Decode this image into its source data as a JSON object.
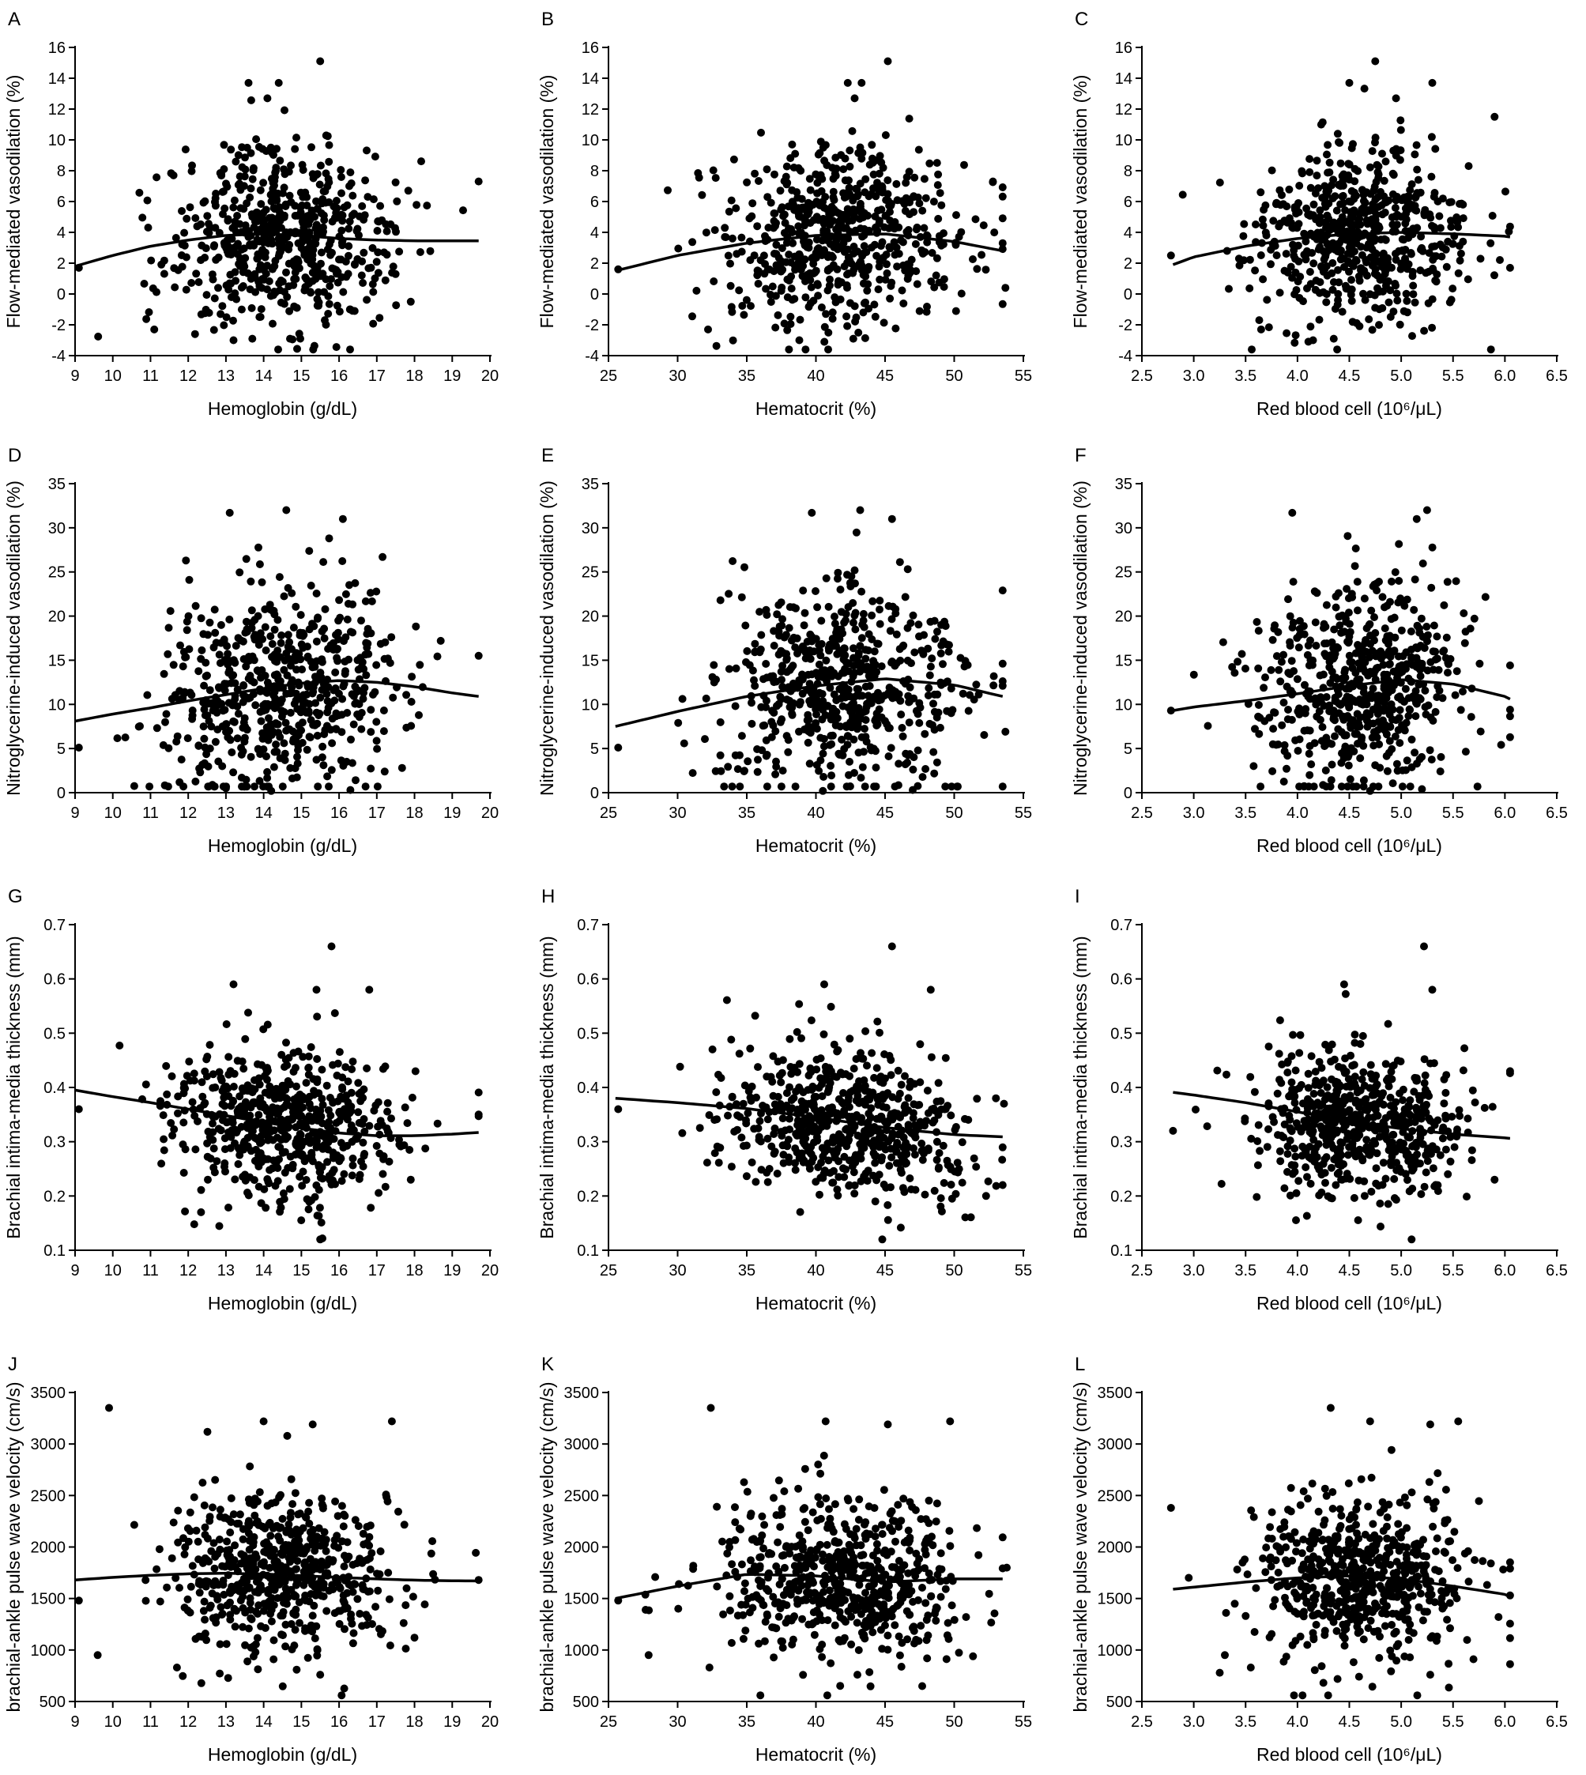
{
  "chart_data": [
    {
      "panel": "A",
      "type": "scatter",
      "xlabel": "Hemoglobin (g/dL)",
      "ylabel": "Flow-mediated vasodilation (%)",
      "xlim": [
        9,
        20
      ],
      "ylim": [
        -4,
        16
      ],
      "xticks": [
        "9",
        "10",
        "11",
        "12",
        "13",
        "14",
        "15",
        "16",
        "17",
        "18",
        "19",
        "20"
      ],
      "yticks": [
        "-4",
        "-2",
        "0",
        "2",
        "4",
        "6",
        "8",
        "10",
        "12",
        "14",
        "16"
      ],
      "fit": {
        "x": [
          9,
          10,
          11,
          12,
          13,
          14,
          15,
          16,
          17,
          18,
          19,
          19.7
        ],
        "y": [
          1.8,
          2.5,
          3.1,
          3.5,
          3.8,
          3.9,
          3.8,
          3.6,
          3.5,
          3.45,
          3.45,
          3.45
        ]
      },
      "points": {
        "n": 600,
        "x_mean": 14.5,
        "x_sd": 1.5,
        "y_mean": 3.7,
        "y_sd": 2.9,
        "extremes": [
          [
            15.5,
            15.1
          ],
          [
            13.6,
            13.7
          ],
          [
            14.4,
            13.7
          ],
          [
            14.1,
            12.7
          ],
          [
            13.2,
            -3.0
          ],
          [
            14.7,
            -2.9
          ],
          [
            11.1,
            -2.3
          ],
          [
            19.7,
            7.3
          ],
          [
            17.9,
            -0.5
          ],
          [
            9.1,
            1.7
          ]
        ]
      }
    },
    {
      "panel": "B",
      "type": "scatter",
      "xlabel": "Hematocrit (%)",
      "ylabel": "Flow-mediated vasodilation (%)",
      "xlim": [
        25,
        55
      ],
      "ylim": [
        -4,
        16
      ],
      "xticks": [
        "25",
        "30",
        "35",
        "40",
        "45",
        "50",
        "55"
      ],
      "yticks": [
        "-4",
        "-2",
        "0",
        "2",
        "4",
        "6",
        "8",
        "10",
        "12",
        "14",
        "16"
      ],
      "fit": {
        "x": [
          25.5,
          30,
          35,
          40,
          45,
          50,
          53.5
        ],
        "y": [
          1.5,
          2.5,
          3.3,
          3.8,
          3.9,
          3.4,
          2.8
        ]
      },
      "points": {
        "n": 600,
        "x_mean": 42,
        "x_sd": 4.5,
        "y_mean": 3.7,
        "y_sd": 2.9,
        "extremes": [
          [
            45.2,
            15.1
          ],
          [
            42.3,
            13.7
          ],
          [
            43.3,
            13.7
          ],
          [
            42.8,
            12.7
          ],
          [
            38.8,
            -3.0
          ],
          [
            42.7,
            -2.9
          ],
          [
            32.2,
            -2.3
          ],
          [
            52.8,
            7.3
          ],
          [
            53.7,
            0.4
          ],
          [
            25.7,
            1.6
          ]
        ]
      }
    },
    {
      "panel": "C",
      "type": "scatter",
      "xlabel": "Red blood cell (10⁶/μL)",
      "ylabel": "Flow-mediated vasodilation (%)",
      "xlim": [
        2.5,
        6.5
      ],
      "ylim": [
        -4,
        16
      ],
      "xticks": [
        "2.5",
        "3.0",
        "3.5",
        "4.0",
        "4.5",
        "5.0",
        "5.5",
        "6.0",
        "6.5"
      ],
      "yticks": [
        "-4",
        "-2",
        "0",
        "2",
        "4",
        "6",
        "8",
        "10",
        "12",
        "14",
        "16"
      ],
      "fit": {
        "x": [
          2.8,
          3.0,
          3.5,
          4.0,
          4.5,
          5.0,
          5.5,
          6.0,
          6.05
        ],
        "y": [
          1.9,
          2.4,
          3.1,
          3.6,
          3.9,
          4.0,
          3.9,
          3.75,
          3.7
        ]
      },
      "points": {
        "n": 600,
        "x_mean": 4.6,
        "x_sd": 0.5,
        "y_mean": 3.7,
        "y_sd": 2.9,
        "extremes": [
          [
            4.75,
            15.1
          ],
          [
            4.5,
            13.7
          ],
          [
            5.3,
            13.7
          ],
          [
            4.95,
            12.7
          ],
          [
            4.15,
            -3.0
          ],
          [
            4.35,
            -2.9
          ],
          [
            3.65,
            -2.3
          ],
          [
            5.9,
            11.5
          ],
          [
            6.05,
            1.7
          ],
          [
            2.78,
            2.5
          ]
        ]
      }
    },
    {
      "panel": "D",
      "type": "scatter",
      "xlabel": "Hemoglobin (g/dL)",
      "ylabel": "Nitroglycerine-induced vasodilation (%)",
      "xlim": [
        9,
        20
      ],
      "ylim": [
        0,
        35
      ],
      "xticks": [
        "9",
        "10",
        "11",
        "12",
        "13",
        "14",
        "15",
        "16",
        "17",
        "18",
        "19",
        "20"
      ],
      "yticks": [
        "0",
        "5",
        "10",
        "15",
        "20",
        "25",
        "30",
        "35"
      ],
      "fit": {
        "x": [
          9,
          10,
          11,
          12,
          13,
          14,
          15,
          16,
          17,
          18,
          19,
          19.7
        ],
        "y": [
          8.1,
          8.9,
          9.6,
          10.4,
          11.1,
          11.8,
          12.4,
          12.7,
          12.5,
          12.0,
          11.3,
          10.9
        ]
      },
      "points": {
        "n": 600,
        "x_mean": 14.5,
        "x_sd": 1.5,
        "y_mean": 11.8,
        "y_sd": 6.0,
        "extremes": [
          [
            14.6,
            32.0
          ],
          [
            13.1,
            31.7
          ],
          [
            16.1,
            31.0
          ],
          [
            19.7,
            15.5
          ],
          [
            9.1,
            5.1
          ],
          [
            14.2,
            0.2
          ],
          [
            13.0,
            0.5
          ],
          [
            16.3,
            0.3
          ]
        ]
      }
    },
    {
      "panel": "E",
      "type": "scatter",
      "xlabel": "Hematocrit (%)",
      "ylabel": "Nitroglycerine-induced vasodilation (%)",
      "xlim": [
        25,
        55
      ],
      "ylim": [
        0,
        35
      ],
      "xticks": [
        "25",
        "30",
        "35",
        "40",
        "45",
        "50",
        "55"
      ],
      "yticks": [
        "0",
        "5",
        "10",
        "15",
        "20",
        "25",
        "30",
        "35"
      ],
      "fit": {
        "x": [
          25.5,
          30,
          35,
          40,
          45,
          50,
          53.5
        ],
        "y": [
          7.5,
          9.2,
          10.9,
          12.1,
          12.9,
          12.2,
          10.9
        ]
      },
      "points": {
        "n": 600,
        "x_mean": 42,
        "x_sd": 4.5,
        "y_mean": 11.8,
        "y_sd": 6.0,
        "extremes": [
          [
            43.2,
            32.0
          ],
          [
            39.7,
            31.7
          ],
          [
            45.5,
            31.0
          ],
          [
            53.7,
            6.9
          ],
          [
            25.7,
            5.1
          ],
          [
            40.5,
            0.2
          ],
          [
            47.0,
            0.3
          ]
        ]
      }
    },
    {
      "panel": "F",
      "type": "scatter",
      "xlabel": "Red blood cell (10⁶/μL)",
      "ylabel": "Nitroglycerine-induced vasodilation (%)",
      "xlim": [
        2.5,
        6.5
      ],
      "ylim": [
        0,
        35
      ],
      "xticks": [
        "2.5",
        "3.0",
        "3.5",
        "4.0",
        "4.5",
        "5.0",
        "5.5",
        "6.0",
        "6.5"
      ],
      "yticks": [
        "0",
        "5",
        "10",
        "15",
        "20",
        "25",
        "30",
        "35"
      ],
      "fit": {
        "x": [
          2.8,
          3.0,
          3.5,
          4.0,
          4.5,
          5.0,
          5.5,
          6.0,
          6.05
        ],
        "y": [
          9.3,
          9.7,
          10.4,
          11.2,
          12.1,
          12.8,
          12.3,
          10.9,
          10.6
        ]
      },
      "points": {
        "n": 600,
        "x_mean": 4.6,
        "x_sd": 0.5,
        "y_mean": 11.8,
        "y_sd": 6.0,
        "extremes": [
          [
            5.25,
            32.0
          ],
          [
            3.95,
            31.7
          ],
          [
            5.15,
            31.0
          ],
          [
            6.05,
            9.4
          ],
          [
            2.78,
            9.3
          ],
          [
            4.7,
            0.2
          ],
          [
            5.2,
            0.4
          ]
        ]
      }
    },
    {
      "panel": "G",
      "type": "scatter",
      "xlabel": "Hemoglobin (g/dL)",
      "ylabel": "Brachial intima-media thickness (mm)",
      "xlim": [
        9,
        20
      ],
      "ylim": [
        0.1,
        0.7
      ],
      "xticks": [
        "9",
        "10",
        "11",
        "12",
        "13",
        "14",
        "15",
        "16",
        "17",
        "18",
        "19",
        "20"
      ],
      "yticks": [
        "0.1",
        "0.2",
        "0.3",
        "0.4",
        "0.5",
        "0.6",
        "0.7"
      ],
      "fit": {
        "x": [
          9,
          10,
          11,
          12,
          13,
          14,
          15,
          16,
          17,
          18,
          19,
          19.7
        ],
        "y": [
          0.395,
          0.383,
          0.372,
          0.36,
          0.348,
          0.336,
          0.325,
          0.316,
          0.311,
          0.311,
          0.314,
          0.317
        ]
      },
      "points": {
        "n": 600,
        "x_mean": 14.5,
        "x_sd": 1.5,
        "y_mean": 0.33,
        "y_sd": 0.07,
        "extremes": [
          [
            15.8,
            0.66
          ],
          [
            13.2,
            0.59
          ],
          [
            15.4,
            0.58
          ],
          [
            16.8,
            0.58
          ],
          [
            15.5,
            0.12
          ],
          [
            9.1,
            0.36
          ],
          [
            19.7,
            0.35
          ],
          [
            17.9,
            0.23
          ]
        ]
      }
    },
    {
      "panel": "H",
      "type": "scatter",
      "xlabel": "Hematocrit (%)",
      "ylabel": "Brachial intima-media thickness (mm)",
      "xlim": [
        25,
        55
      ],
      "ylim": [
        0.1,
        0.7
      ],
      "xticks": [
        "25",
        "30",
        "35",
        "40",
        "45",
        "50",
        "55"
      ],
      "yticks": [
        "0.1",
        "0.2",
        "0.3",
        "0.4",
        "0.5",
        "0.6",
        "0.7"
      ],
      "fit": {
        "x": [
          25.5,
          30,
          35,
          40,
          45,
          50,
          53.5
        ],
        "y": [
          0.38,
          0.372,
          0.361,
          0.345,
          0.326,
          0.313,
          0.309
        ]
      },
      "points": {
        "n": 600,
        "x_mean": 42,
        "x_sd": 4.5,
        "y_mean": 0.33,
        "y_sd": 0.07,
        "extremes": [
          [
            45.5,
            0.66
          ],
          [
            40.6,
            0.59
          ],
          [
            48.3,
            0.58
          ],
          [
            44.8,
            0.12
          ],
          [
            25.7,
            0.36
          ],
          [
            53.6,
            0.37
          ],
          [
            52.3,
            0.2
          ]
        ]
      }
    },
    {
      "panel": "I",
      "type": "scatter",
      "xlabel": "Red blood cell (10⁶/μL)",
      "ylabel": "Brachial intima-media thickness (mm)",
      "xlim": [
        2.5,
        6.5
      ],
      "ylim": [
        0.1,
        0.7
      ],
      "xticks": [
        "2.5",
        "3.0",
        "3.5",
        "4.0",
        "4.5",
        "5.0",
        "5.5",
        "6.0",
        "6.5"
      ],
      "yticks": [
        "0.1",
        "0.2",
        "0.3",
        "0.4",
        "0.5",
        "0.6",
        "0.7"
      ],
      "fit": {
        "x": [
          2.8,
          3.0,
          3.5,
          4.0,
          4.5,
          5.0,
          5.5,
          6.0,
          6.05
        ],
        "y": [
          0.391,
          0.386,
          0.372,
          0.355,
          0.338,
          0.324,
          0.314,
          0.307,
          0.306
        ]
      },
      "points": {
        "n": 600,
        "x_mean": 4.6,
        "x_sd": 0.5,
        "y_mean": 0.33,
        "y_sd": 0.07,
        "extremes": [
          [
            5.22,
            0.66
          ],
          [
            4.45,
            0.59
          ],
          [
            5.3,
            0.58
          ],
          [
            5.1,
            0.12
          ],
          [
            2.8,
            0.32
          ],
          [
            6.05,
            0.43
          ],
          [
            5.9,
            0.23
          ]
        ]
      }
    },
    {
      "panel": "J",
      "type": "scatter",
      "xlabel": "Hemoglobin (g/dL)",
      "ylabel": "brachial-ankle pulse wave velocity (cm/s)",
      "xlim": [
        9,
        20
      ],
      "ylim": [
        500,
        3500
      ],
      "xticks": [
        "9",
        "10",
        "11",
        "12",
        "13",
        "14",
        "15",
        "16",
        "17",
        "18",
        "19",
        "20"
      ],
      "yticks": [
        "500",
        "1000",
        "1500",
        "2000",
        "2500",
        "3000",
        "3500"
      ],
      "fit": {
        "x": [
          9,
          10,
          11,
          12,
          13,
          14,
          15,
          16,
          17,
          18,
          19,
          19.7
        ],
        "y": [
          1680,
          1705,
          1725,
          1740,
          1745,
          1738,
          1722,
          1705,
          1690,
          1678,
          1672,
          1670
        ]
      },
      "points": {
        "n": 600,
        "x_mean": 14.5,
        "x_sd": 1.5,
        "y_mean": 1680,
        "y_sd": 380,
        "extremes": [
          [
            9.9,
            3350
          ],
          [
            14.0,
            3220
          ],
          [
            17.4,
            3220
          ],
          [
            15.3,
            3190
          ],
          [
            15.5,
            760
          ],
          [
            9.6,
            950
          ],
          [
            11.7,
            830
          ],
          [
            19.7,
            1680
          ],
          [
            9.1,
            1480
          ],
          [
            18.0,
            1120
          ]
        ]
      }
    },
    {
      "panel": "K",
      "type": "scatter",
      "xlabel": "Hematocrit (%)",
      "ylabel": "brachial-ankle pulse wave velocity (cm/s)",
      "xlim": [
        25,
        55
      ],
      "ylim": [
        500,
        3500
      ],
      "xticks": [
        "25",
        "30",
        "35",
        "40",
        "45",
        "50",
        "55"
      ],
      "yticks": [
        "500",
        "1000",
        "1500",
        "2000",
        "2500",
        "3000",
        "3500"
      ],
      "fit": {
        "x": [
          25.5,
          30,
          35,
          40,
          45,
          50,
          53.5
        ],
        "y": [
          1500,
          1620,
          1735,
          1720,
          1660,
          1690,
          1690
        ]
      },
      "points": {
        "n": 600,
        "x_mean": 42,
        "x_sd": 4.5,
        "y_mean": 1680,
        "y_sd": 380,
        "extremes": [
          [
            32.4,
            3350
          ],
          [
            40.7,
            3220
          ],
          [
            49.7,
            3220
          ],
          [
            45.2,
            3190
          ],
          [
            43.0,
            760
          ],
          [
            27.9,
            950
          ],
          [
            32.3,
            830
          ],
          [
            53.8,
            1800
          ],
          [
            25.7,
            1480
          ]
        ]
      }
    },
    {
      "panel": "L",
      "type": "scatter",
      "xlabel": "Red blood cell (10⁶/μL)",
      "ylabel": "brachial-ankle pulse wave velocity (cm/s)",
      "xlim": [
        2.5,
        6.5
      ],
      "ylim": [
        500,
        3500
      ],
      "xticks": [
        "2.5",
        "3.0",
        "3.5",
        "4.0",
        "4.5",
        "5.0",
        "5.5",
        "6.0",
        "6.5"
      ],
      "yticks": [
        "500",
        "1000",
        "1500",
        "2000",
        "2500",
        "3000",
        "3500"
      ],
      "fit": {
        "x": [
          2.8,
          3.0,
          3.5,
          4.0,
          4.5,
          5.0,
          5.5,
          6.0,
          6.05
        ],
        "y": [
          1590,
          1610,
          1660,
          1700,
          1720,
          1690,
          1620,
          1540,
          1520
        ]
      },
      "points": {
        "n": 600,
        "x_mean": 4.6,
        "x_sd": 0.5,
        "y_mean": 1680,
        "y_sd": 380,
        "extremes": [
          [
            4.32,
            3350
          ],
          [
            4.7,
            3220
          ],
          [
            5.55,
            3220
          ],
          [
            5.28,
            3190
          ],
          [
            5.28,
            760
          ],
          [
            3.3,
            950
          ],
          [
            3.55,
            830
          ],
          [
            6.05,
            1530
          ],
          [
            2.78,
            2380
          ]
        ]
      }
    }
  ]
}
